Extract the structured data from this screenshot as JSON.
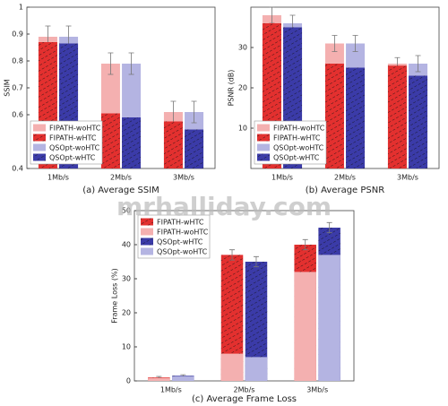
{
  "chart_data": [
    {
      "type": "bar",
      "ylabel": "SSIM",
      "caption": "(a)  Average SSIM",
      "categories": [
        "1Mb/s",
        "2Mb/s",
        "3Mb/s"
      ],
      "ylim": [
        0.4,
        1
      ],
      "yticks": [
        0.4,
        0.6,
        0.7,
        0.8,
        0.9,
        1
      ],
      "legend": "lower left",
      "series": [
        {
          "name": "FIPATH-woHTC",
          "color": "#f4b0b0",
          "hatch": false,
          "values": [
            0.89,
            0.79,
            0.61
          ],
          "errors": [
            0.04,
            0.04,
            0.04
          ]
        },
        {
          "name": "FIPATH-wHTC",
          "color": "#e3302f",
          "hatch": true,
          "values": [
            0.87,
            0.605,
            0.575
          ]
        },
        {
          "name": "QSOpt-woHTC",
          "color": "#b4b4e2",
          "hatch": false,
          "values": [
            0.89,
            0.79,
            0.61
          ],
          "errors": [
            0.04,
            0.04,
            0.04
          ]
        },
        {
          "name": "QSOpt-wHTC",
          "color": "#3b3ba8",
          "hatch": true,
          "values": [
            0.865,
            0.59,
            0.545
          ]
        }
      ]
    },
    {
      "type": "bar",
      "ylabel": "PSNR (dB)",
      "caption": "(b)  Average PSNR",
      "categories": [
        "1Mb/s",
        "2Mb/s",
        "3Mb/s"
      ],
      "ylim": [
        0,
        40
      ],
      "yticks": [
        10,
        20,
        30
      ],
      "legend": "lower left",
      "series": [
        {
          "name": "FIPATH-woHTC",
          "color": "#f4b0b0",
          "hatch": false,
          "values": [
            38,
            31,
            26
          ],
          "errors": [
            2,
            2,
            1.5
          ]
        },
        {
          "name": "FIPATH-wHTC",
          "color": "#e3302f",
          "hatch": true,
          "values": [
            36,
            26,
            25.5
          ]
        },
        {
          "name": "QSOpt-woHTC",
          "color": "#b4b4e2",
          "hatch": false,
          "values": [
            36,
            31,
            26
          ],
          "errors": [
            2,
            2,
            2
          ]
        },
        {
          "name": "QSOpt-wHTC",
          "color": "#3b3ba8",
          "hatch": true,
          "values": [
            35,
            25,
            23
          ]
        }
      ]
    },
    {
      "type": "bar",
      "ylabel": "Frame Loss (%)",
      "caption": "(c)  Average Frame Loss",
      "categories": [
        "1Mb/s",
        "2Mb/s",
        "3Mb/s"
      ],
      "ylim": [
        0,
        50
      ],
      "yticks": [
        0,
        10,
        20,
        30,
        40,
        50
      ],
      "legend": "upper left",
      "series": [
        {
          "name": "FIPATH-wHTC",
          "color": "#e3302f",
          "hatch": true,
          "values": [
            1,
            37,
            40
          ],
          "errors": [
            0.3,
            1.5,
            1.5
          ]
        },
        {
          "name": "FIPATH-woHTC",
          "color": "#f4b0b0",
          "hatch": false,
          "values": [
            0.8,
            8,
            32
          ]
        },
        {
          "name": "QSOpt-wHTC",
          "color": "#3b3ba8",
          "hatch": true,
          "values": [
            1.5,
            35,
            45
          ],
          "errors": [
            0.3,
            1.5,
            1.5
          ]
        },
        {
          "name": "QSOpt-woHTC",
          "color": "#b4b4e2",
          "hatch": false,
          "values": [
            1.3,
            7,
            37
          ]
        }
      ]
    }
  ],
  "watermark": "mrhalliday.com"
}
